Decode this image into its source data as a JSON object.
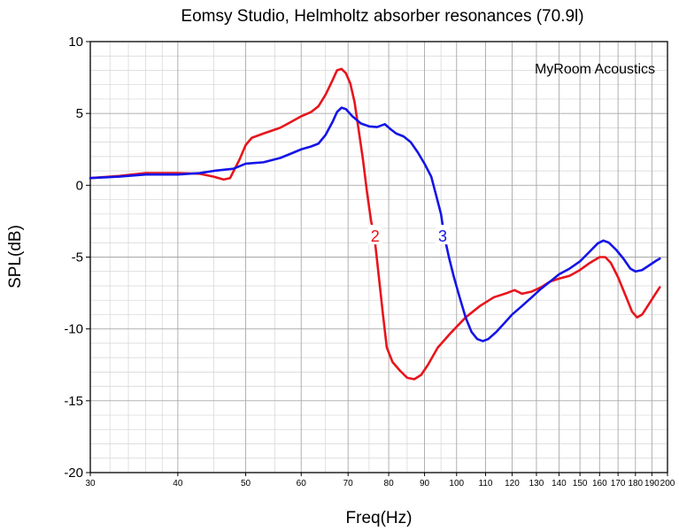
{
  "chart_data": {
    "type": "line",
    "title": "Eomsy Studio, Helmholtz absorber resonances (70.9l)",
    "xlabel": "Freq(Hz)",
    "ylabel": "SPL(dB)",
    "x_scale": "log",
    "xlim": [
      30,
      200
    ],
    "ylim": [
      -20,
      10
    ],
    "x_ticks": [
      30,
      40,
      50,
      60,
      70,
      80,
      90,
      100,
      110,
      120,
      130,
      140,
      150,
      160,
      170,
      180,
      190,
      200
    ],
    "y_ticks": [
      10,
      5,
      0,
      -5,
      -10,
      -15,
      -20
    ],
    "grid": true,
    "watermark": "MyRoom Acoustics",
    "series": [
      {
        "name": "2",
        "color": "#e8141c",
        "label_at": [
          76.5,
          -3.5
        ],
        "points": [
          [
            30,
            0.5
          ],
          [
            33,
            0.65
          ],
          [
            36,
            0.85
          ],
          [
            40,
            0.85
          ],
          [
            43,
            0.8
          ],
          [
            45,
            0.6
          ],
          [
            46.5,
            0.4
          ],
          [
            47.5,
            0.5
          ],
          [
            49,
            1.8
          ],
          [
            50,
            2.8
          ],
          [
            51,
            3.3
          ],
          [
            53,
            3.6
          ],
          [
            56,
            4.0
          ],
          [
            58,
            4.4
          ],
          [
            60,
            4.8
          ],
          [
            62,
            5.1
          ],
          [
            63.5,
            5.5
          ],
          [
            65,
            6.3
          ],
          [
            66.5,
            7.3
          ],
          [
            67.5,
            8.0
          ],
          [
            68.5,
            8.1
          ],
          [
            69.5,
            7.8
          ],
          [
            70.5,
            7.1
          ],
          [
            71.5,
            5.8
          ],
          [
            72.5,
            3.8
          ],
          [
            73.5,
            1.8
          ],
          [
            74.5,
            -0.5
          ],
          [
            75.5,
            -2.5
          ],
          [
            76.3,
            -3.5
          ],
          [
            77.3,
            -6.0
          ],
          [
            78.5,
            -9.0
          ],
          [
            79.5,
            -11.3
          ],
          [
            81,
            -12.3
          ],
          [
            83,
            -12.9
          ],
          [
            85,
            -13.4
          ],
          [
            87,
            -13.5
          ],
          [
            89,
            -13.2
          ],
          [
            91,
            -12.5
          ],
          [
            94,
            -11.3
          ],
          [
            98,
            -10.3
          ],
          [
            103,
            -9.2
          ],
          [
            108,
            -8.4
          ],
          [
            113,
            -7.8
          ],
          [
            118,
            -7.5
          ],
          [
            121,
            -7.3
          ],
          [
            124,
            -7.55
          ],
          [
            128,
            -7.4
          ],
          [
            132,
            -7.1
          ],
          [
            136,
            -6.7
          ],
          [
            140,
            -6.5
          ],
          [
            145,
            -6.3
          ],
          [
            150,
            -5.9
          ],
          [
            155,
            -5.4
          ],
          [
            160,
            -5.0
          ],
          [
            163,
            -5.0
          ],
          [
            166,
            -5.4
          ],
          [
            170,
            -6.4
          ],
          [
            175,
            -7.9
          ],
          [
            178,
            -8.8
          ],
          [
            181,
            -9.2
          ],
          [
            184,
            -9.0
          ],
          [
            188,
            -8.3
          ],
          [
            192,
            -7.6
          ],
          [
            195,
            -7.1
          ]
        ]
      },
      {
        "name": "3",
        "color": "#1414e8",
        "label_at": [
          95.5,
          -3.5
        ],
        "points": [
          [
            30,
            0.5
          ],
          [
            33,
            0.6
          ],
          [
            36,
            0.75
          ],
          [
            40,
            0.75
          ],
          [
            43,
            0.85
          ],
          [
            45,
            1.0
          ],
          [
            48,
            1.15
          ],
          [
            50,
            1.5
          ],
          [
            53,
            1.6
          ],
          [
            56,
            1.9
          ],
          [
            58,
            2.2
          ],
          [
            60,
            2.5
          ],
          [
            62,
            2.7
          ],
          [
            63.5,
            2.9
          ],
          [
            65,
            3.5
          ],
          [
            66.5,
            4.4
          ],
          [
            67.5,
            5.1
          ],
          [
            68.5,
            5.4
          ],
          [
            69.5,
            5.3
          ],
          [
            71,
            4.8
          ],
          [
            73,
            4.3
          ],
          [
            75,
            4.1
          ],
          [
            77,
            4.05
          ],
          [
            79,
            4.25
          ],
          [
            80.5,
            3.9
          ],
          [
            82,
            3.6
          ],
          [
            84,
            3.4
          ],
          [
            86,
            3.0
          ],
          [
            88,
            2.3
          ],
          [
            90,
            1.5
          ],
          [
            92,
            0.6
          ],
          [
            93.5,
            -0.7
          ],
          [
            95,
            -2.0
          ],
          [
            96,
            -3.5
          ],
          [
            97.5,
            -5.0
          ],
          [
            99,
            -6.3
          ],
          [
            101,
            -7.8
          ],
          [
            103,
            -9.2
          ],
          [
            105,
            -10.2
          ],
          [
            107,
            -10.7
          ],
          [
            109,
            -10.85
          ],
          [
            111,
            -10.7
          ],
          [
            114,
            -10.2
          ],
          [
            117,
            -9.6
          ],
          [
            120,
            -9.0
          ],
          [
            124,
            -8.4
          ],
          [
            128,
            -7.8
          ],
          [
            132,
            -7.2
          ],
          [
            136,
            -6.7
          ],
          [
            140,
            -6.2
          ],
          [
            145,
            -5.8
          ],
          [
            150,
            -5.3
          ],
          [
            155,
            -4.6
          ],
          [
            159,
            -4.05
          ],
          [
            162,
            -3.85
          ],
          [
            165,
            -4.0
          ],
          [
            169,
            -4.5
          ],
          [
            173,
            -5.1
          ],
          [
            177,
            -5.8
          ],
          [
            180,
            -6.0
          ],
          [
            184,
            -5.9
          ],
          [
            188,
            -5.6
          ],
          [
            192,
            -5.3
          ],
          [
            195,
            -5.1
          ]
        ]
      }
    ]
  }
}
